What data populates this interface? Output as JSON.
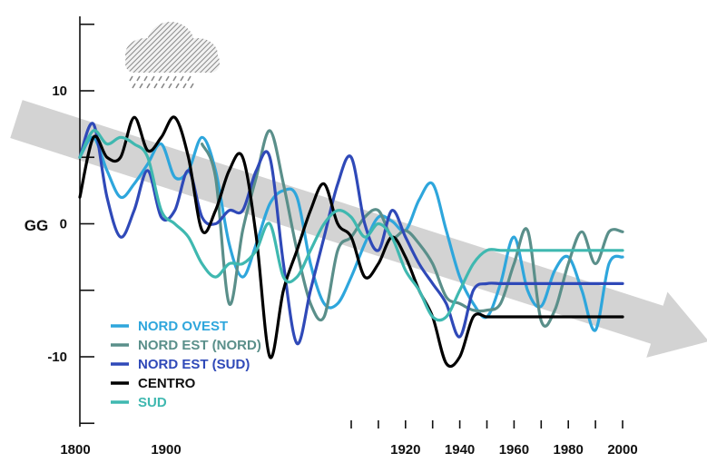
{
  "chart_data": {
    "type": "line",
    "title": "",
    "xlabel": "",
    "ylabel": "GG",
    "xlim": [
      1800,
      2000
    ],
    "ylim": [
      -15,
      15
    ],
    "x_ticks": [
      1800,
      1900,
      1920,
      1940,
      1960,
      1980,
      2000
    ],
    "y_tick_labels": [
      10,
      0,
      -10
    ],
    "legend": "bottom-left",
    "grid": false,
    "trend_arrow": {
      "from": [
        1800,
        7.2
      ],
      "to": [
        2000,
        -8.5
      ],
      "color": "#d3d3d3"
    },
    "weather_icon": "rain-cloud-icon",
    "series": [
      {
        "name": "NORD OVEST",
        "color": "#2ea6dc",
        "x": [
          1800,
          1805,
          1810,
          1815,
          1820,
          1825,
          1830,
          1835,
          1840,
          1845,
          1850,
          1855,
          1860,
          1865,
          1870,
          1875,
          1880,
          1885,
          1890,
          1895,
          1900,
          1905,
          1910,
          1915,
          1920,
          1925,
          1930,
          1935,
          1940,
          1945,
          1950,
          1955,
          1960,
          1965,
          1970,
          1975,
          1980,
          1985,
          1990,
          1995,
          2000
        ],
        "y": [
          5,
          6.5,
          4,
          2,
          3,
          4.5,
          6,
          3.5,
          4,
          6.5,
          4,
          -1.5,
          -4,
          -1.5,
          1.5,
          2.5,
          2,
          -3,
          -6,
          -6,
          -4,
          -1.5,
          0.5,
          0.2,
          -0.5,
          1.8,
          3,
          -0.5,
          -4,
          -6,
          -7,
          -4.5,
          -1,
          -5,
          -6.2,
          -3.5,
          -2.5,
          -5,
          -8,
          -3,
          -2.5
        ]
      },
      {
        "name": "NORD EST (NORD)",
        "color": "#5a8f8a",
        "x": [
          1845,
          1850,
          1855,
          1860,
          1865,
          1870,
          1875,
          1880,
          1885,
          1890,
          1895,
          1900,
          1905,
          1910,
          1915,
          1920,
          1925,
          1930,
          1935,
          1940,
          1945,
          1950,
          1955,
          1960,
          1965,
          1970,
          1975,
          1980,
          1985,
          1990,
          1995,
          2000
        ],
        "y": [
          6,
          3.5,
          -6,
          -0.5,
          3.5,
          7,
          3,
          -2,
          -6,
          -7,
          -2,
          -1,
          0.5,
          1,
          -1,
          -0.5,
          -1.5,
          -3,
          -5.5,
          -6,
          -6.5,
          -6.5,
          -6,
          -3,
          -0.5,
          -7.3,
          -6.5,
          -3,
          -0.6,
          -3,
          -0.6,
          -0.6
        ]
      },
      {
        "name": "NORD EST (SUD)",
        "color": "#2f49b8",
        "x": [
          1800,
          1805,
          1810,
          1815,
          1820,
          1825,
          1830,
          1835,
          1840,
          1845,
          1850,
          1855,
          1860,
          1865,
          1870,
          1875,
          1880,
          1885,
          1890,
          1895,
          1900,
          1905,
          1910,
          1915,
          1920,
          1925,
          1930,
          1935,
          1940,
          1945,
          1950,
          1955,
          1960,
          1965,
          1970,
          1975,
          1980,
          1985,
          1990,
          1995,
          2000
        ],
        "y": [
          5,
          7.5,
          2,
          -1,
          1,
          4,
          0.5,
          1,
          4,
          0.5,
          0,
          1,
          1,
          4,
          5,
          -3,
          -9,
          -5,
          -1,
          3,
          5,
          0,
          -2,
          1,
          -1,
          -3,
          -4.5,
          -6,
          -8.5,
          -5,
          -4.5,
          -4.5,
          -4.5,
          -4.5,
          -4.5,
          -4.5,
          -4.5,
          -4.5,
          -4.5,
          -4.5,
          -4.5
        ]
      },
      {
        "name": "CENTRO",
        "color": "#000000",
        "x": [
          1800,
          1805,
          1810,
          1815,
          1820,
          1825,
          1830,
          1835,
          1840,
          1845,
          1850,
          1855,
          1860,
          1865,
          1870,
          1875,
          1880,
          1885,
          1890,
          1895,
          1900,
          1905,
          1910,
          1915,
          1920,
          1925,
          1930,
          1935,
          1940,
          1945,
          1950,
          1955,
          1960,
          1965,
          1970,
          1975,
          1980,
          1985,
          1990,
          1995,
          2000
        ],
        "y": [
          2,
          6.5,
          5,
          5,
          8,
          5.5,
          6.5,
          8,
          5,
          -0.5,
          1,
          4,
          5,
          -1,
          -10,
          -5,
          -2,
          1,
          3,
          0,
          -1,
          -4,
          -3,
          -1,
          -2.5,
          -5,
          -7,
          -10.5,
          -10,
          -7,
          -7,
          -7,
          -7,
          -7,
          -7,
          -7,
          -7,
          -7,
          -7,
          -7,
          -7
        ]
      },
      {
        "name": "SUD",
        "color": "#3fb8b0",
        "x": [
          1800,
          1805,
          1810,
          1815,
          1820,
          1825,
          1830,
          1835,
          1840,
          1845,
          1850,
          1855,
          1860,
          1865,
          1870,
          1875,
          1880,
          1885,
          1890,
          1895,
          1900,
          1905,
          1910,
          1915,
          1920,
          1925,
          1930,
          1935,
          1940,
          1945,
          1950,
          1955,
          1960,
          1965,
          1970,
          1975,
          1980,
          1985,
          1990,
          1995,
          2000
        ],
        "y": [
          5,
          7,
          6,
          6.5,
          6,
          5,
          1,
          0,
          -1,
          -3,
          -4,
          -3,
          -3,
          -2,
          0,
          -4,
          -4,
          -2,
          0,
          1,
          0.5,
          -1,
          0,
          -1,
          -3.5,
          -5,
          -7,
          -7,
          -5,
          -3,
          -2,
          -2,
          -2,
          -2,
          -2,
          -2,
          -2,
          -2,
          -2,
          -2,
          -2
        ]
      }
    ]
  }
}
